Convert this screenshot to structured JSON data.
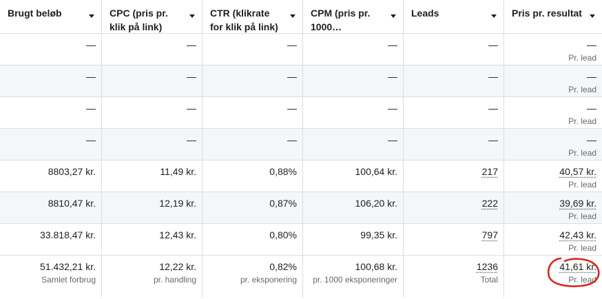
{
  "columns": [
    {
      "label": "Brugt beløb"
    },
    {
      "label": "CPC (pris pr. klik på link)"
    },
    {
      "label": "CTR (klikrate for klik på link)"
    },
    {
      "label": "CPM (pris pr. 1000…"
    },
    {
      "label": "Leads"
    },
    {
      "label": "Pris pr. resultat"
    }
  ],
  "rows": [
    {
      "spend": "—",
      "cpc": "—",
      "ctr": "—",
      "cpm": "—",
      "leads": "—",
      "cpr": "—",
      "cpr_sub": "Pr. lead"
    },
    {
      "spend": "—",
      "cpc": "—",
      "ctr": "—",
      "cpm": "—",
      "leads": "—",
      "cpr": "—",
      "cpr_sub": "Pr. lead"
    },
    {
      "spend": "—",
      "cpc": "—",
      "ctr": "—",
      "cpm": "—",
      "leads": "—",
      "cpr": "—",
      "cpr_sub": "Pr. lead"
    },
    {
      "spend": "—",
      "cpc": "—",
      "ctr": "—",
      "cpm": "—",
      "leads": "—",
      "cpr": "—",
      "cpr_sub": "Pr. lead"
    },
    {
      "spend": "8803,27 kr.",
      "cpc": "11,49 kr.",
      "ctr": "0,88%",
      "cpm": "100,64 kr.",
      "leads": "217",
      "cpr": "40,57 kr.",
      "cpr_sub": "Pr. lead"
    },
    {
      "spend": "8810,47 kr.",
      "cpc": "12,19 kr.",
      "ctr": "0,87%",
      "cpm": "106,20 kr.",
      "leads": "222",
      "cpr": "39,69 kr.",
      "cpr_sub": "Pr. lead"
    },
    {
      "spend": "33.818,47 kr.",
      "cpc": "12,43 kr.",
      "ctr": "0,80%",
      "cpm": "99,35 kr.",
      "leads": "797",
      "cpr": "42,43 kr.",
      "cpr_sub": "Pr. lead"
    }
  ],
  "totals": {
    "spend": "51.432,21 kr.",
    "spend_sub": "Samlet forbrug",
    "cpc": "12,22 kr.",
    "cpc_sub": "pr. handling",
    "ctr": "0,82%",
    "ctr_sub": "pr. eksponering",
    "cpm": "100,68 kr.",
    "cpm_sub": "pr. 1000 eksponeringer",
    "leads": "1236",
    "leads_sub": "Total",
    "cpr": "41,61 kr.",
    "cpr_sub": "Pr. lead"
  },
  "colors": {
    "annotation": "#d8261c",
    "border": "#dadde1",
    "alt_row": "#f5f6f7"
  }
}
